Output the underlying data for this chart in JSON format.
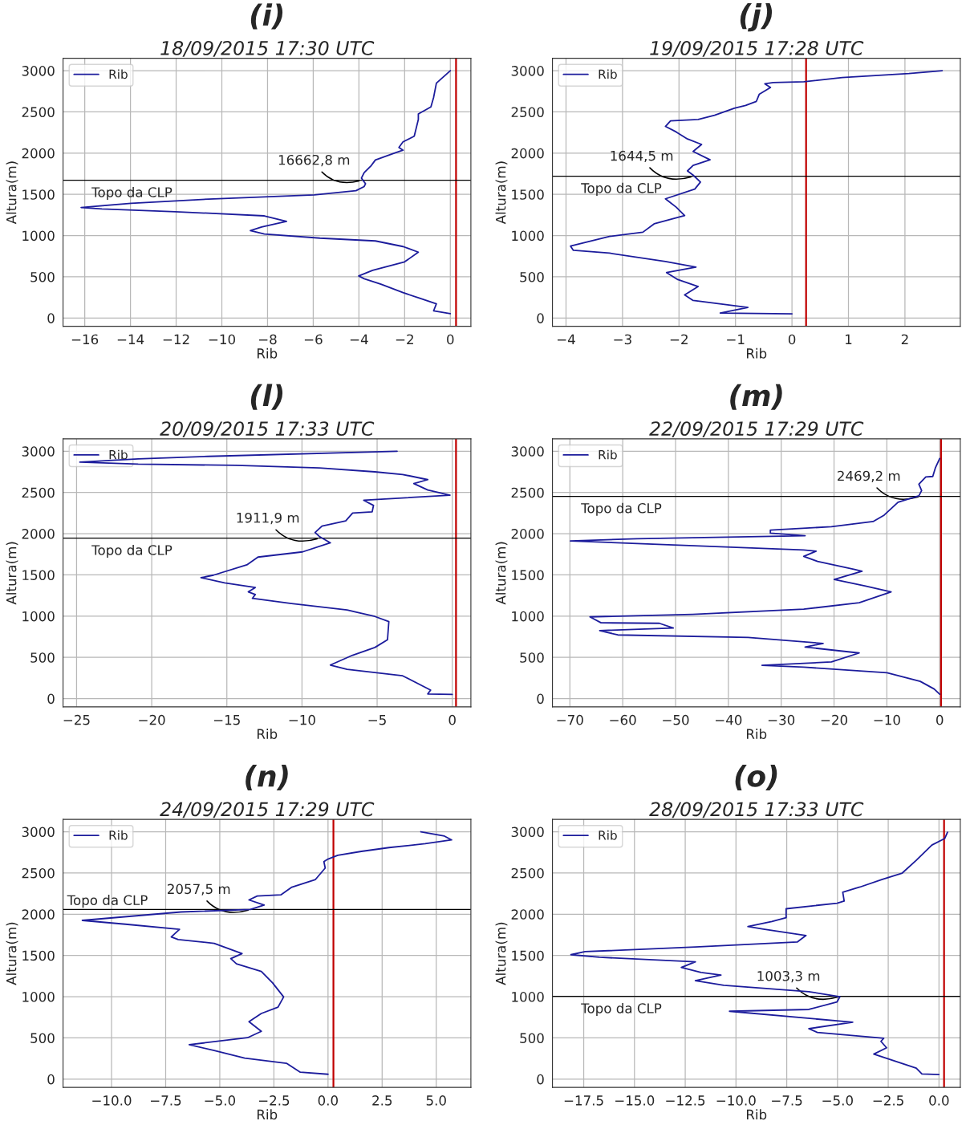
{
  "chart_data": [
    {
      "type": "line",
      "title": "(i)",
      "subtitle": "18/09/2015 17:30 UTC",
      "xlabel": "Rib",
      "ylabel": "Altura(m)",
      "xlim": [
        -16.95,
        0.9
      ],
      "ylim": [
        -100,
        3150
      ],
      "xticks": [
        -16,
        -14,
        -12,
        -10,
        -8,
        -6,
        -4,
        -2,
        0
      ],
      "yticks": [
        0,
        500,
        1000,
        1500,
        2000,
        2500,
        3000
      ],
      "grid": true,
      "legend": "top left",
      "series": [
        {
          "name": "Rib",
          "color": "#1c1c9c",
          "x": [
            0,
            -0.61,
            -0.73,
            -0.85,
            -1.4,
            -1.4,
            -1.58,
            -2.07,
            -2.25,
            -2.07,
            -2.43,
            -3.28,
            -3.46,
            -3.77,
            -3.89,
            -3.71,
            -3.77,
            -4.13,
            -5.95,
            -10.57,
            -13.97,
            -16.16,
            -15.25,
            -12.03,
            -8.14,
            -7.17,
            -8.26,
            -8.75,
            -8.14,
            -5.71,
            -3.28,
            -2.07,
            -1.4,
            -2.0,
            -3.4,
            -4.01,
            -3.77,
            -3.04,
            -2.07,
            -1.34,
            -0.61,
            -0.73,
            0
          ],
          "values": [
            3000,
            2848,
            2678,
            2560,
            2475,
            2408,
            2205,
            2137,
            2069,
            2035,
            2001,
            1917,
            1849,
            1764,
            1697,
            1629,
            1595,
            1544,
            1493,
            1443,
            1392,
            1341,
            1324,
            1290,
            1239,
            1172,
            1104,
            1060,
            1019,
            969,
            935,
            867,
            799,
            681,
            579,
            511,
            477,
            410,
            308,
            240,
            173,
            88,
            54
          ]
        }
      ],
      "ref_lines": [
        {
          "axis": "x",
          "value": 0.25,
          "color": "#c00000"
        },
        {
          "axis": "y",
          "value": 1670,
          "label": "Topo da CLP",
          "color": "#000000"
        }
      ],
      "annotations": [
        {
          "text": "16662,8 m",
          "x": -3.9,
          "y": 1670
        }
      ]
    },
    {
      "type": "line",
      "title": "(j)",
      "subtitle": "19/09/2015 17:28 UTC",
      "xlabel": "Rib",
      "ylabel": "Altura(m)",
      "xlim": [
        -4.24,
        2.98
      ],
      "ylim": [
        -100,
        3150
      ],
      "xticks": [
        -4,
        -3,
        -2,
        -1,
        0,
        1,
        2
      ],
      "yticks": [
        0,
        500,
        1000,
        1500,
        2000,
        2500,
        3000
      ],
      "grid": true,
      "legend": "top left",
      "series": [
        {
          "name": "Rib",
          "color": "#1c1c9c",
          "x": [
            2.66,
            2.07,
            0.89,
            0.21,
            -0.33,
            -0.48,
            -0.38,
            -0.58,
            -0.63,
            -0.82,
            -1.02,
            -1.37,
            -1.66,
            -2.15,
            -2.24,
            -2.05,
            -1.85,
            -1.6,
            -1.75,
            -1.45,
            -1.75,
            -1.85,
            -1.75,
            -1.62,
            -1.72,
            -2.24,
            -2.05,
            -1.9,
            -2.44,
            -2.64,
            -3.23,
            -3.92,
            -3.87,
            -3.23,
            -2.24,
            -1.7,
            -2.22,
            -2.02,
            -1.66,
            -1.9,
            -1.75,
            -0.78,
            -1.27,
            0
          ],
          "values": [
            3000,
            2966,
            2916,
            2865,
            2855,
            2841,
            2797,
            2713,
            2628,
            2578,
            2544,
            2459,
            2409,
            2392,
            2324,
            2257,
            2172,
            2105,
            2020,
            1919,
            1851,
            1784,
            1733,
            1649,
            1564,
            1446,
            1345,
            1243,
            1142,
            1041,
            990,
            872,
            821,
            787,
            686,
            618,
            551,
            466,
            382,
            280,
            213,
            128,
            61,
            51
          ]
        }
      ],
      "ref_lines": [
        {
          "axis": "x",
          "value": 0.25,
          "color": "#c00000"
        },
        {
          "axis": "y",
          "value": 1720,
          "label": "Topo da CLP",
          "color": "#000000"
        }
      ],
      "annotations": [
        {
          "text": "1644,5 m",
          "x": -1.75,
          "y": 1720
        }
      ]
    },
    {
      "type": "line",
      "title": "(l)",
      "subtitle": "20/09/2015 17:33 UTC",
      "xlabel": "Rib",
      "ylabel": "Altura(m)",
      "xlim": [
        -25.9,
        1.24
      ],
      "ylim": [
        -100,
        3150
      ],
      "xticks": [
        -25,
        -20,
        -15,
        -10,
        -5,
        0
      ],
      "yticks": [
        0,
        500,
        1000,
        1500,
        2000,
        2500,
        3000
      ],
      "grid": true,
      "legend": "top left",
      "series": [
        {
          "name": "Rib",
          "color": "#1c1c9c",
          "x": [
            -3.67,
            -16.26,
            -20.9,
            -24.78,
            -20.9,
            -14.41,
            -8.85,
            -5.15,
            -3.3,
            -1.63,
            -2.56,
            -1.63,
            -0.15,
            -5.89,
            -5.24,
            -5.33,
            -6.63,
            -7.09,
            -8.67,
            -9.13,
            -8.85,
            -8.11,
            -9.96,
            -12.93,
            -13.67,
            -15.89,
            -16.72,
            -15.15,
            -13.11,
            -13.57,
            -13.11,
            -13.3,
            -10.7,
            -7.0,
            -5.15,
            -4.22,
            -4.31,
            -5.15,
            -6.63,
            -8.11,
            -7.0,
            -3.3,
            -1.44,
            -1.63,
            0
          ],
          "values": [
            3000,
            2937,
            2906,
            2868,
            2843,
            2828,
            2797,
            2750,
            2718,
            2655,
            2608,
            2530,
            2467,
            2405,
            2342,
            2264,
            2249,
            2155,
            2092,
            2014,
            1967,
            1889,
            1779,
            1716,
            1622,
            1497,
            1466,
            1403,
            1347,
            1294,
            1262,
            1215,
            1153,
            1074,
            996,
            933,
            714,
            620,
            526,
            407,
            354,
            276,
            103,
            56,
            50
          ]
        }
      ],
      "ref_lines": [
        {
          "axis": "x",
          "value": 0.25,
          "color": "#c00000"
        },
        {
          "axis": "y",
          "value": 1945,
          "label": "Topo da CLP",
          "color": "#000000"
        }
      ],
      "annotations": [
        {
          "text": "1911,9 m",
          "x": -8.85,
          "y": 1945
        }
      ]
    },
    {
      "type": "line",
      "title": "(m)",
      "subtitle": "22/09/2015 17:29 UTC",
      "xlabel": "Rib",
      "ylabel": "Altura(m)",
      "xlim": [
        -73.3,
        3.9
      ],
      "ylim": [
        -100,
        3150
      ],
      "xticks": [
        -70,
        -60,
        -50,
        -40,
        -30,
        -20,
        -10,
        0
      ],
      "yticks": [
        0,
        500,
        1000,
        1500,
        2000,
        2500,
        3000
      ],
      "grid": true,
      "legend": "top left",
      "series": [
        {
          "name": "Rib",
          "color": "#1c1c9c",
          "x": [
            0,
            -0.79,
            -1.31,
            -2.63,
            -3.94,
            -3.42,
            -3.94,
            -7.88,
            -10.51,
            -12.61,
            -20.49,
            -32.05,
            -32.05,
            -25.48,
            -57.27,
            -69.9,
            -57.27,
            -25.74,
            -23.4,
            -25.74,
            -23.12,
            -16.29,
            -14.71,
            -19.97,
            -14.19,
            -9.2,
            -15.24,
            -25.74,
            -46.76,
            -66.2,
            -64.1,
            -53.07,
            -50.44,
            -64.36,
            -60.94,
            -36.26,
            -22.07,
            -25.48,
            -15.24,
            -20.49,
            -33.63,
            -25.74,
            -9.98,
            -3.68,
            -1.05,
            0
          ],
          "values": [
            2912,
            2803,
            2694,
            2688,
            2600,
            2522,
            2459,
            2381,
            2225,
            2147,
            2084,
            2044,
            2006,
            1975,
            1938,
            1912,
            1881,
            1803,
            1788,
            1725,
            1663,
            1569,
            1544,
            1444,
            1366,
            1294,
            1163,
            1084,
            1022,
            991,
            919,
            913,
            856,
            825,
            772,
            741,
            669,
            625,
            553,
            444,
            403,
            381,
            313,
            209,
            116,
            53
          ]
        }
      ],
      "ref_lines": [
        {
          "axis": "x",
          "value": 0.25,
          "color": "#c00000"
        },
        {
          "axis": "y",
          "value": 2453,
          "label": "Topo da CLP",
          "color": "#000000"
        }
      ],
      "annotations": [
        {
          "text": "2469,2 m",
          "x": -3.68,
          "y": 2453
        }
      ]
    },
    {
      "type": "line",
      "title": "(n)",
      "subtitle": "24/09/2015 17:29 UTC",
      "xlabel": "Rib",
      "ylabel": "Altura(m)",
      "xlim": [
        -12.24,
        6.6
      ],
      "ylim": [
        -100,
        3150
      ],
      "xticks": [
        {
          "value": -10,
          "label": "−10.0"
        },
        {
          "value": -7.5,
          "label": "−7.5"
        },
        {
          "value": -5,
          "label": "−5.0"
        },
        {
          "value": -2.5,
          "label": "−2.5"
        },
        {
          "value": 0,
          "label": "0.0"
        },
        {
          "value": 2.5,
          "label": "2.5"
        },
        {
          "value": 5,
          "label": "5.0"
        }
      ],
      "yticks": [
        0,
        500,
        1000,
        1500,
        2000,
        2500,
        3000
      ],
      "grid": true,
      "legend": "top left",
      "series": [
        {
          "name": "Rib",
          "color": "#1c1c9c",
          "x": [
            4.29,
            5.38,
            5.71,
            4.49,
            2.82,
            1.54,
            0.45,
            0,
            -0.19,
            -0.13,
            -0.58,
            -1.67,
            -2.18,
            -3.27,
            -3.65,
            -2.95,
            -3.59,
            -6.79,
            -11.35,
            -9.36,
            -6.86,
            -7.24,
            -6.92,
            -5.26,
            -3.97,
            -4.49,
            -4.23,
            -3.08,
            -2.56,
            -2.05,
            -2.31,
            -3.08,
            -3.65,
            -3.08,
            -3.72,
            -6.41,
            -5.26,
            -3.85,
            -1.92,
            -1.28,
            0
          ],
          "values": [
            3000,
            2947,
            2901,
            2855,
            2808,
            2762,
            2715,
            2669,
            2638,
            2560,
            2421,
            2328,
            2235,
            2220,
            2173,
            2111,
            2058,
            2027,
            1925,
            1879,
            1817,
            1724,
            1693,
            1647,
            1523,
            1461,
            1399,
            1306,
            1167,
            997,
            873,
            796,
            697,
            580,
            502,
            418,
            347,
            254,
            192,
            84,
            59
          ]
        }
      ],
      "ref_lines": [
        {
          "axis": "x",
          "value": 0.25,
          "color": "#c00000"
        },
        {
          "axis": "y",
          "value": 2058,
          "label": "Topo da CLP",
          "color": "#000000"
        }
      ],
      "annotations": [
        {
          "text": "2057,5 m",
          "x": -3.59,
          "y": 2058
        }
      ]
    },
    {
      "type": "line",
      "title": "(o)",
      "subtitle": "28/09/2015 17:33 UTC",
      "xlabel": "Rib",
      "ylabel": "Altura(m)",
      "xlim": [
        -19.04,
        1.05
      ],
      "ylim": [
        -100,
        3150
      ],
      "xticks": [
        {
          "value": -17.5,
          "label": "−17.5"
        },
        {
          "value": -15,
          "label": "−15.0"
        },
        {
          "value": -12.5,
          "label": "−12.5"
        },
        {
          "value": -10,
          "label": "−10.0"
        },
        {
          "value": -7.5,
          "label": "−7.5"
        },
        {
          "value": -5,
          "label": "−5.0"
        },
        {
          "value": -2.5,
          "label": "−2.5"
        },
        {
          "value": 0,
          "label": "0.0"
        }
      ],
      "yticks": [
        0,
        500,
        1000,
        1500,
        2000,
        2500,
        3000
      ],
      "grid": true,
      "legend": "top left",
      "series": [
        {
          "name": "Rib",
          "color": "#1c1c9c",
          "x": [
            0.42,
            0.28,
            -0.35,
            -1.12,
            -1.81,
            -2.79,
            -3.9,
            -4.74,
            -4.67,
            -5.02,
            -7.53,
            -7.53,
            -8.23,
            -9.41,
            -8.65,
            -6.55,
            -6.97,
            -12.0,
            -17.43,
            -18.13,
            -16.73,
            -12.0,
            -12.69,
            -11.72,
            -10.74,
            -12.0,
            -10.6,
            -6.41,
            -4.88,
            -5.02,
            -6.41,
            -10.32,
            -4.25,
            -6.41,
            -5.99,
            -2.72,
            -2.86,
            -2.58,
            -3.21,
            -1.12,
            -0.84,
            0
          ],
          "values": [
            2994,
            2917,
            2839,
            2654,
            2499,
            2422,
            2329,
            2267,
            2159,
            2134,
            2066,
            1958,
            1912,
            1850,
            1819,
            1742,
            1664,
            1602,
            1546,
            1509,
            1478,
            1423,
            1355,
            1293,
            1262,
            1194,
            1138,
            1061,
            999,
            937,
            845,
            823,
            690,
            612,
            566,
            495,
            458,
            380,
            303,
            133,
            62,
            56
          ]
        }
      ],
      "ref_lines": [
        {
          "axis": "x",
          "value": 0.25,
          "color": "#c00000"
        },
        {
          "axis": "y",
          "value": 1003,
          "label": "Topo da CLP",
          "color": "#000000"
        }
      ],
      "annotations": [
        {
          "text": "1003,3 m",
          "x": -4.88,
          "y": 1003
        }
      ]
    }
  ]
}
